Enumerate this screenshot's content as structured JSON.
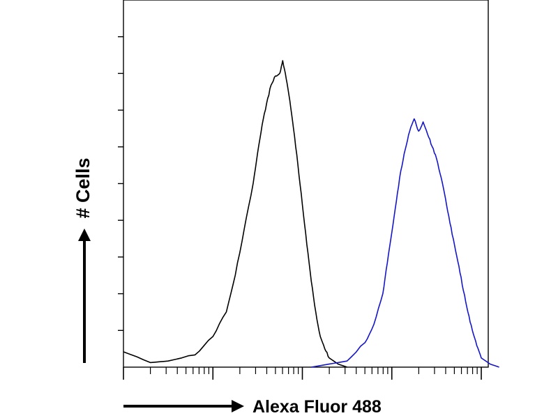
{
  "chart_data": {
    "type": "line",
    "title": "",
    "xlabel": "Alexa Fluor 488",
    "ylabel": "# Cells",
    "x_scale": "log",
    "x_decades": 4,
    "y_range": [
      0,
      100
    ],
    "y_ticks": 10,
    "grid": false,
    "legend": "none",
    "series": [
      {
        "color": "#000000",
        "x": [
          0,
          0.3,
          0.5,
          0.8,
          1.0,
          1.15,
          1.25,
          1.35,
          1.45,
          1.5,
          1.55,
          1.6,
          1.65,
          1.7,
          1.75,
          1.78,
          1.82,
          1.86,
          1.9,
          1.95,
          2.0,
          2.05,
          2.1,
          2.15,
          2.2,
          2.25,
          2.3,
          2.4,
          2.5
        ],
        "y": [
          5,
          1.5,
          2,
          4,
          10,
          18,
          30,
          45,
          60,
          70,
          79,
          86,
          92,
          95,
          96,
          100,
          94,
          87,
          78,
          66,
          53,
          40,
          28,
          18,
          10,
          6,
          3,
          1,
          0
        ]
      },
      {
        "color": "#1515c8",
        "x": [
          2.1,
          2.3,
          2.5,
          2.7,
          2.8,
          2.9,
          2.95,
          3.0,
          3.05,
          3.1,
          3.15,
          3.2,
          3.25,
          3.3,
          3.35,
          3.4,
          3.45,
          3.5,
          3.55,
          3.6,
          3.65,
          3.7,
          3.75,
          3.8,
          3.85,
          3.9,
          3.95,
          4.0,
          4.1,
          4.2
        ],
        "y": [
          0,
          1,
          2,
          8,
          14,
          24,
          34,
          44,
          54,
          64,
          71,
          77,
          81,
          77,
          80,
          76,
          72,
          68,
          62,
          55,
          47,
          40,
          33,
          25,
          18,
          12,
          7,
          3,
          1,
          0
        ]
      }
    ]
  }
}
